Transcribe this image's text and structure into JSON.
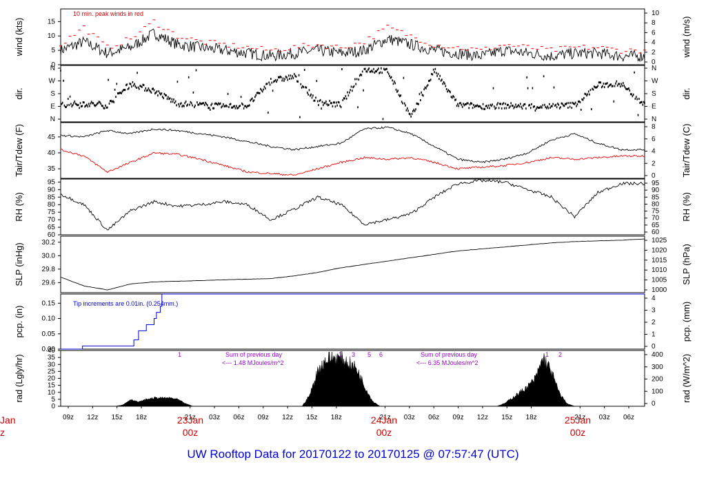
{
  "title": "UW Rooftop Data for 20170122  to  20170125 @ 07:57:47  (UTC)",
  "colors": {
    "primary": "#000000",
    "dewpoint": "#ee0000",
    "precip": "#0000cc",
    "annotation": "#9900cc",
    "note": "#cc0000",
    "date": "#cc0000"
  },
  "time_axis": {
    "ticks": [
      "09z",
      "12z",
      "15z",
      "18z",
      "21z",
      "03z",
      "06z",
      "09z",
      "12z",
      "15z",
      "18z",
      "21z",
      "03z",
      "06z",
      "09z",
      "12z",
      "15z",
      "18z",
      "21z",
      "03z",
      "06z"
    ],
    "dates": [
      {
        "day": "23Jan",
        "hour": "00z"
      },
      {
        "day": "24Jan",
        "hour": "00z"
      },
      {
        "day": "25Jan",
        "hour": "00z"
      }
    ],
    "left_date_clipped": {
      "day": "Jan",
      "hour": "z"
    }
  },
  "chart_data": [
    {
      "type": "line",
      "name": "wind",
      "ylabel": "wind (kts)",
      "ylabel_right": "wind (m/s)",
      "yticks": [
        0,
        5,
        10,
        15
      ],
      "yticks_right": [
        0,
        2,
        4,
        6,
        8,
        10
      ],
      "ylim": [
        0,
        19.4
      ],
      "annotation": "10 min. peak winds in red",
      "x_hours": [
        0,
        3,
        6,
        9,
        12,
        15,
        18,
        21,
        24,
        27,
        30,
        33,
        36,
        39,
        42,
        45,
        48,
        51,
        54,
        57,
        60,
        63,
        66,
        69,
        72,
        75
      ],
      "values": [
        5,
        8,
        4,
        6,
        11,
        7,
        6,
        5,
        4,
        3,
        4,
        5,
        4,
        5,
        9,
        7,
        5,
        4,
        3,
        5,
        4,
        3,
        4,
        4,
        3,
        3
      ],
      "series": [
        {
          "name": "wind",
          "values": [
            5,
            8,
            4,
            6,
            11,
            7,
            6,
            5,
            4,
            3,
            4,
            5,
            4,
            5,
            9,
            7,
            5,
            4,
            3,
            5,
            4,
            3,
            4,
            4,
            3,
            3
          ]
        },
        {
          "name": "10 min. peak winds",
          "values": [
            7,
            13,
            6,
            9,
            15,
            10,
            8,
            7,
            6,
            5,
            6,
            7,
            6,
            8,
            13,
            10,
            7,
            6,
            5,
            7,
            6,
            5,
            6,
            6,
            5,
            5
          ]
        }
      ]
    },
    {
      "type": "scatter",
      "name": "direction",
      "ylabel": "dir.",
      "ylabel_right": "dir.",
      "yticks": [
        "N",
        "E",
        "S",
        "W",
        "N"
      ],
      "ylim": [
        0,
        360
      ],
      "x_hours": [
        0,
        3,
        6,
        9,
        12,
        15,
        18,
        21,
        24,
        27,
        30,
        33,
        36,
        39,
        42,
        45,
        48,
        51,
        54,
        57,
        60,
        63,
        66,
        69,
        72,
        75
      ],
      "values": [
        100,
        110,
        95,
        250,
        200,
        110,
        100,
        90,
        95,
        270,
        300,
        120,
        100,
        350,
        340,
        10,
        345,
        100,
        90,
        95,
        90,
        90,
        100,
        240,
        250,
        100
      ]
    },
    {
      "type": "line",
      "name": "temperature",
      "ylabel": "Tair/Tdew (F)",
      "ylabel_right": "Tair/Tdew (C)",
      "yticks": [
        35,
        40,
        45
      ],
      "yticks_right": [
        0,
        2,
        4,
        6,
        8
      ],
      "ylim": [
        32,
        49.5
      ],
      "x_hours": [
        0,
        3,
        6,
        9,
        12,
        15,
        18,
        21,
        24,
        27,
        30,
        33,
        36,
        39,
        42,
        45,
        48,
        51,
        54,
        57,
        60,
        63,
        66,
        69,
        72,
        75
      ],
      "series": [
        {
          "name": "Tair",
          "values": [
            45.5,
            45,
            47,
            46,
            47.5,
            47,
            46,
            45,
            43.5,
            42,
            41,
            42,
            43,
            47.5,
            48,
            46,
            42,
            38,
            37,
            38,
            40,
            44,
            46,
            43,
            41,
            41
          ]
        },
        {
          "name": "Tdew",
          "values": [
            41,
            39,
            34,
            37,
            40,
            39.5,
            38,
            36,
            34,
            33.5,
            33,
            35,
            37,
            38.5,
            38,
            38.5,
            37,
            35,
            35.5,
            36,
            37,
            38.5,
            38,
            38.5,
            39,
            39
          ]
        }
      ]
    },
    {
      "type": "line",
      "name": "rh",
      "ylabel": "RH (%)",
      "ylabel_right": "RH (%)",
      "yticks": [
        60,
        65,
        70,
        75,
        80,
        85,
        90,
        95
      ],
      "ylim": [
        60,
        97
      ],
      "x_hours": [
        0,
        3,
        6,
        9,
        12,
        15,
        18,
        21,
        24,
        27,
        30,
        33,
        36,
        39,
        42,
        45,
        48,
        51,
        54,
        57,
        60,
        63,
        66,
        69,
        72,
        75
      ],
      "values": [
        87,
        80,
        63,
        76,
        82,
        79,
        80,
        82,
        80,
        70,
        77,
        85,
        80,
        67,
        70,
        74,
        85,
        94,
        96,
        95,
        90,
        85,
        72,
        88,
        94,
        94
      ]
    },
    {
      "type": "line",
      "name": "slp",
      "ylabel": "SLP (inHg)",
      "ylabel_right": "SLP (hPa)",
      "yticks": [
        29.6,
        29.8,
        30.0,
        30.2
      ],
      "yticks_right": [
        1000,
        1005,
        1010,
        1015,
        1020,
        1025
      ],
      "ylim": [
        29.45,
        30.29
      ],
      "x_hours": [
        0,
        3,
        6,
        9,
        12,
        15,
        18,
        21,
        24,
        27,
        30,
        33,
        36,
        39,
        42,
        45,
        48,
        51,
        54,
        57,
        60,
        63,
        66,
        69,
        72,
        75
      ],
      "values": [
        29.68,
        29.55,
        29.49,
        29.58,
        29.61,
        29.62,
        29.63,
        29.64,
        29.65,
        29.66,
        29.7,
        29.75,
        29.82,
        29.87,
        29.92,
        29.97,
        30.02,
        30.07,
        30.1,
        30.13,
        30.16,
        30.19,
        30.21,
        30.22,
        30.23,
        30.25
      ]
    },
    {
      "type": "line",
      "name": "precip",
      "ylabel": "pcp. (in)",
      "ylabel_right": "pcp. (mm)",
      "yticks": [
        0.0,
        0.05,
        0.1,
        0.15
      ],
      "yticks_right": [
        0,
        1,
        2,
        3,
        4
      ],
      "ylim": [
        0,
        0.18
      ],
      "annotation": "Tip increments are 0.01in. (0.254mm.)",
      "x_hours": [
        0,
        2.8,
        9,
        9.4,
        10,
        11,
        12,
        12.3,
        12.8,
        13,
        75
      ],
      "values": [
        0.0,
        0.01,
        0.01,
        0.03,
        0.06,
        0.08,
        0.1,
        0.12,
        0.14,
        0.18,
        0.18
      ]
    },
    {
      "type": "area",
      "name": "radiation",
      "ylabel": "rad (Lgly/hr)",
      "ylabel_right": "rad (W/m^2)",
      "yticks": [
        0,
        5,
        10,
        15,
        20,
        25,
        30,
        35,
        40
      ],
      "yticks_right": [
        0,
        100,
        200,
        300,
        400
      ],
      "ylim": [
        0,
        40
      ],
      "x_hours": [
        7,
        8,
        9,
        10,
        11,
        12,
        13,
        14,
        15,
        16,
        17,
        31,
        32,
        33,
        34,
        35,
        36,
        37,
        38,
        39,
        40,
        41,
        56,
        57,
        58,
        59,
        60,
        61,
        62,
        63,
        64,
        65,
        66
      ],
      "values": [
        0,
        1,
        5,
        3,
        5,
        6,
        6,
        6,
        5,
        2,
        0,
        0,
        8,
        25,
        33,
        35,
        34,
        31,
        27,
        15,
        4,
        0,
        0,
        2,
        6,
        10,
        14,
        20,
        35,
        25,
        10,
        2,
        0
      ],
      "annotations": [
        {
          "text": "Sum of previous day",
          "value": "<--- 1.48 MJoules/m^2"
        },
        {
          "text": "Sum of previous day",
          "value": "<--- 6.35 MJoules/m^2"
        }
      ],
      "markers": [
        "1",
        "1",
        "3",
        "5",
        "6",
        "1",
        "2"
      ]
    }
  ]
}
